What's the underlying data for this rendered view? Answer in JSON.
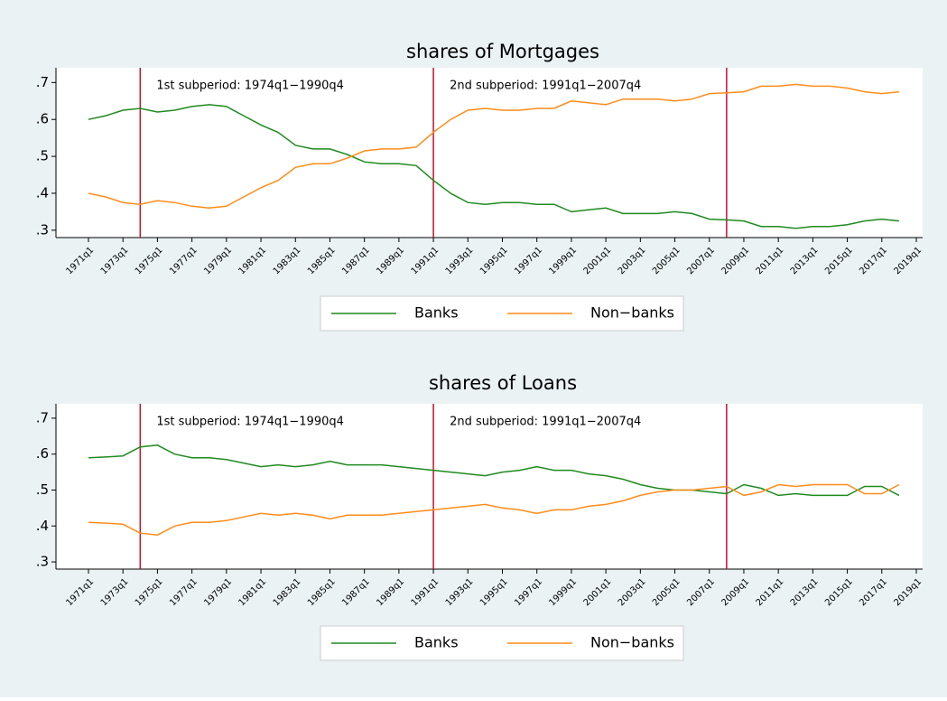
{
  "chart_data": [
    {
      "type": "line",
      "title": "shares of Mortgages",
      "legend": "bottom",
      "grid": false,
      "x": [
        "1971q1",
        "1972q1",
        "1973q1",
        "1974q1",
        "1975q1",
        "1976q1",
        "1977q1",
        "1978q1",
        "1979q1",
        "1980q1",
        "1981q1",
        "1982q1",
        "1983q1",
        "1984q1",
        "1985q1",
        "1986q1",
        "1987q1",
        "1988q1",
        "1989q1",
        "1990q1",
        "1991q1",
        "1992q1",
        "1993q1",
        "1994q1",
        "1995q1",
        "1996q1",
        "1997q1",
        "1998q1",
        "1999q1",
        "2000q1",
        "2001q1",
        "2002q1",
        "2003q1",
        "2004q1",
        "2005q1",
        "2006q1",
        "2007q1",
        "2008q1",
        "2009q1",
        "2010q1",
        "2011q1",
        "2012q1",
        "2013q1",
        "2014q1",
        "2015q1",
        "2016q1",
        "2017q1",
        "2018q1"
      ],
      "series": [
        {
          "name": "Banks",
          "color": "#1f8a1f",
          "values": [
            0.6,
            0.61,
            0.625,
            0.63,
            0.62,
            0.625,
            0.635,
            0.64,
            0.635,
            0.61,
            0.585,
            0.565,
            0.53,
            0.52,
            0.52,
            0.505,
            0.485,
            0.48,
            0.48,
            0.475,
            0.435,
            0.4,
            0.375,
            0.37,
            0.375,
            0.375,
            0.37,
            0.37,
            0.35,
            0.355,
            0.36,
            0.345,
            0.345,
            0.345,
            0.35,
            0.345,
            0.33,
            0.328,
            0.325,
            0.31,
            0.31,
            0.305,
            0.31,
            0.31,
            0.315,
            0.325,
            0.33,
            0.325
          ]
        },
        {
          "name": "Non−banks",
          "color": "#ff8c1a",
          "values": [
            0.4,
            0.39,
            0.375,
            0.37,
            0.38,
            0.375,
            0.365,
            0.36,
            0.365,
            0.39,
            0.415,
            0.435,
            0.47,
            0.48,
            0.48,
            0.495,
            0.515,
            0.52,
            0.52,
            0.525,
            0.565,
            0.6,
            0.625,
            0.63,
            0.625,
            0.625,
            0.63,
            0.63,
            0.65,
            0.645,
            0.64,
            0.655,
            0.655,
            0.655,
            0.65,
            0.655,
            0.67,
            0.672,
            0.675,
            0.69,
            0.69,
            0.695,
            0.69,
            0.69,
            0.685,
            0.675,
            0.67,
            0.675
          ]
        }
      ],
      "xlim": [
        "1971q1",
        "2019q1"
      ],
      "xticks": [
        "1971q1",
        "1973q1",
        "1975q1",
        "1977q1",
        "1979q1",
        "1981q1",
        "1983q1",
        "1985q1",
        "1987q1",
        "1989q1",
        "1991q1",
        "1993q1",
        "1995q1",
        "1997q1",
        "1999q1",
        "2001q1",
        "2003q1",
        "2005q1",
        "2007q1",
        "2009q1",
        "2011q1",
        "2013q1",
        "2015q1",
        "2017q1",
        "2019q1"
      ],
      "ylim": [
        0.28,
        0.74
      ],
      "yticks": [
        {
          "value": 0.3,
          "label": ".3"
        },
        {
          "value": 0.4,
          "label": ".4"
        },
        {
          "value": 0.5,
          "label": ".5"
        },
        {
          "value": 0.6,
          "label": ".6"
        },
        {
          "value": 0.7,
          "label": ".7"
        }
      ],
      "vlines": [
        "1974q1",
        "1991q1",
        "2008q1"
      ],
      "vline_color": "#c8102e",
      "annotations": [
        "1st subperiod: 1974q1−1990q4",
        "2nd subperiod: 1991q1−2007q4"
      ]
    },
    {
      "type": "line",
      "title": "shares of Loans",
      "legend": "bottom",
      "grid": false,
      "x": [
        "1971q1",
        "1972q1",
        "1973q1",
        "1974q1",
        "1975q1",
        "1976q1",
        "1977q1",
        "1978q1",
        "1979q1",
        "1980q1",
        "1981q1",
        "1982q1",
        "1983q1",
        "1984q1",
        "1985q1",
        "1986q1",
        "1987q1",
        "1988q1",
        "1989q1",
        "1990q1",
        "1991q1",
        "1992q1",
        "1993q1",
        "1994q1",
        "1995q1",
        "1996q1",
        "1997q1",
        "1998q1",
        "1999q1",
        "2000q1",
        "2001q1",
        "2002q1",
        "2003q1",
        "2004q1",
        "2005q1",
        "2006q1",
        "2007q1",
        "2008q1",
        "2009q1",
        "2010q1",
        "2011q1",
        "2012q1",
        "2013q1",
        "2014q1",
        "2015q1",
        "2016q1",
        "2017q1",
        "2018q1"
      ],
      "series": [
        {
          "name": "Banks",
          "color": "#1f8a1f",
          "values": [
            0.59,
            0.592,
            0.595,
            0.62,
            0.625,
            0.6,
            0.59,
            0.59,
            0.585,
            0.575,
            0.565,
            0.57,
            0.565,
            0.57,
            0.58,
            0.57,
            0.57,
            0.57,
            0.565,
            0.56,
            0.555,
            0.55,
            0.545,
            0.54,
            0.55,
            0.555,
            0.565,
            0.555,
            0.555,
            0.545,
            0.54,
            0.53,
            0.515,
            0.505,
            0.5,
            0.5,
            0.495,
            0.49,
            0.515,
            0.505,
            0.485,
            0.49,
            0.485,
            0.485,
            0.485,
            0.51,
            0.51,
            0.485
          ]
        },
        {
          "name": "Non−banks",
          "color": "#ff8c1a",
          "values": [
            0.41,
            0.408,
            0.405,
            0.38,
            0.375,
            0.4,
            0.41,
            0.41,
            0.415,
            0.425,
            0.435,
            0.43,
            0.435,
            0.43,
            0.42,
            0.43,
            0.43,
            0.43,
            0.435,
            0.44,
            0.445,
            0.45,
            0.455,
            0.46,
            0.45,
            0.445,
            0.435,
            0.445,
            0.445,
            0.455,
            0.46,
            0.47,
            0.485,
            0.495,
            0.5,
            0.5,
            0.505,
            0.51,
            0.485,
            0.495,
            0.515,
            0.51,
            0.515,
            0.515,
            0.515,
            0.49,
            0.49,
            0.515
          ]
        }
      ],
      "xlim": [
        "1971q1",
        "2019q1"
      ],
      "xticks": [
        "1971q1",
        "1973q1",
        "1975q1",
        "1977q1",
        "1979q1",
        "1981q1",
        "1983q1",
        "1985q1",
        "1987q1",
        "1989q1",
        "1991q1",
        "1993q1",
        "1995q1",
        "1997q1",
        "1999q1",
        "2001q1",
        "2003q1",
        "2005q1",
        "2007q1",
        "2009q1",
        "2011q1",
        "2013q1",
        "2015q1",
        "2017q1",
        "2019q1"
      ],
      "ylim": [
        0.28,
        0.74
      ],
      "yticks": [
        {
          "value": 0.3,
          "label": ".3"
        },
        {
          "value": 0.4,
          "label": ".4"
        },
        {
          "value": 0.5,
          "label": ".5"
        },
        {
          "value": 0.6,
          "label": ".6"
        },
        {
          "value": 0.7,
          "label": ".7"
        }
      ],
      "vlines": [
        "1974q1",
        "1991q1",
        "2008q1"
      ],
      "vline_color": "#c8102e",
      "annotations": [
        "1st subperiod: 1974q1−1990q4",
        "2nd subperiod: 1991q1−2007q4"
      ]
    }
  ]
}
